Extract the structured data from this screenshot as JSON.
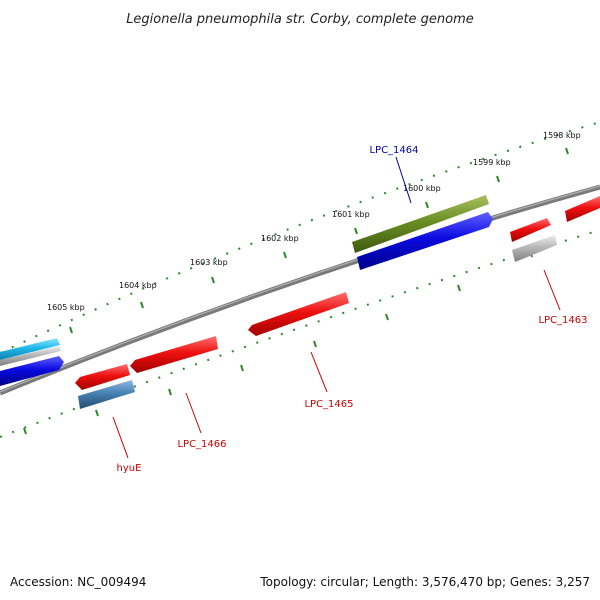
{
  "title": "Legionella pneumophila str. Corby, complete genome",
  "footer": {
    "accession": "Accession: NC_009494",
    "summary": "Topology: circular; Length: 3,576,470 bp; Genes: 3,257"
  },
  "ticks": [
    "1598 kbp",
    "1599 kbp",
    "1600 kbp",
    "1601 kbp",
    "1602 kbp",
    "1603 kbp",
    "1604 kbp",
    "1605 kbp"
  ],
  "gene_labels": [
    {
      "name": "LPC_1464",
      "color": "#0000aa"
    },
    {
      "name": "LPC_1463",
      "color": "#cc0000"
    },
    {
      "name": "LPC_1465",
      "color": "#cc0000"
    },
    {
      "name": "LPC_1466",
      "color": "#cc0000"
    },
    {
      "name": "hyuE",
      "color": "#cc0000"
    }
  ],
  "colors": {
    "backbone": "#808080",
    "tick": "#2a8a2a",
    "red_gene": "#e01010",
    "blue_gene": "#0a0ae0",
    "olive_gene": "#6b8e23",
    "grey_gene": "#b0b0b0",
    "cyan_gene": "#20b8e8",
    "steel_gene": "#4682b4"
  }
}
